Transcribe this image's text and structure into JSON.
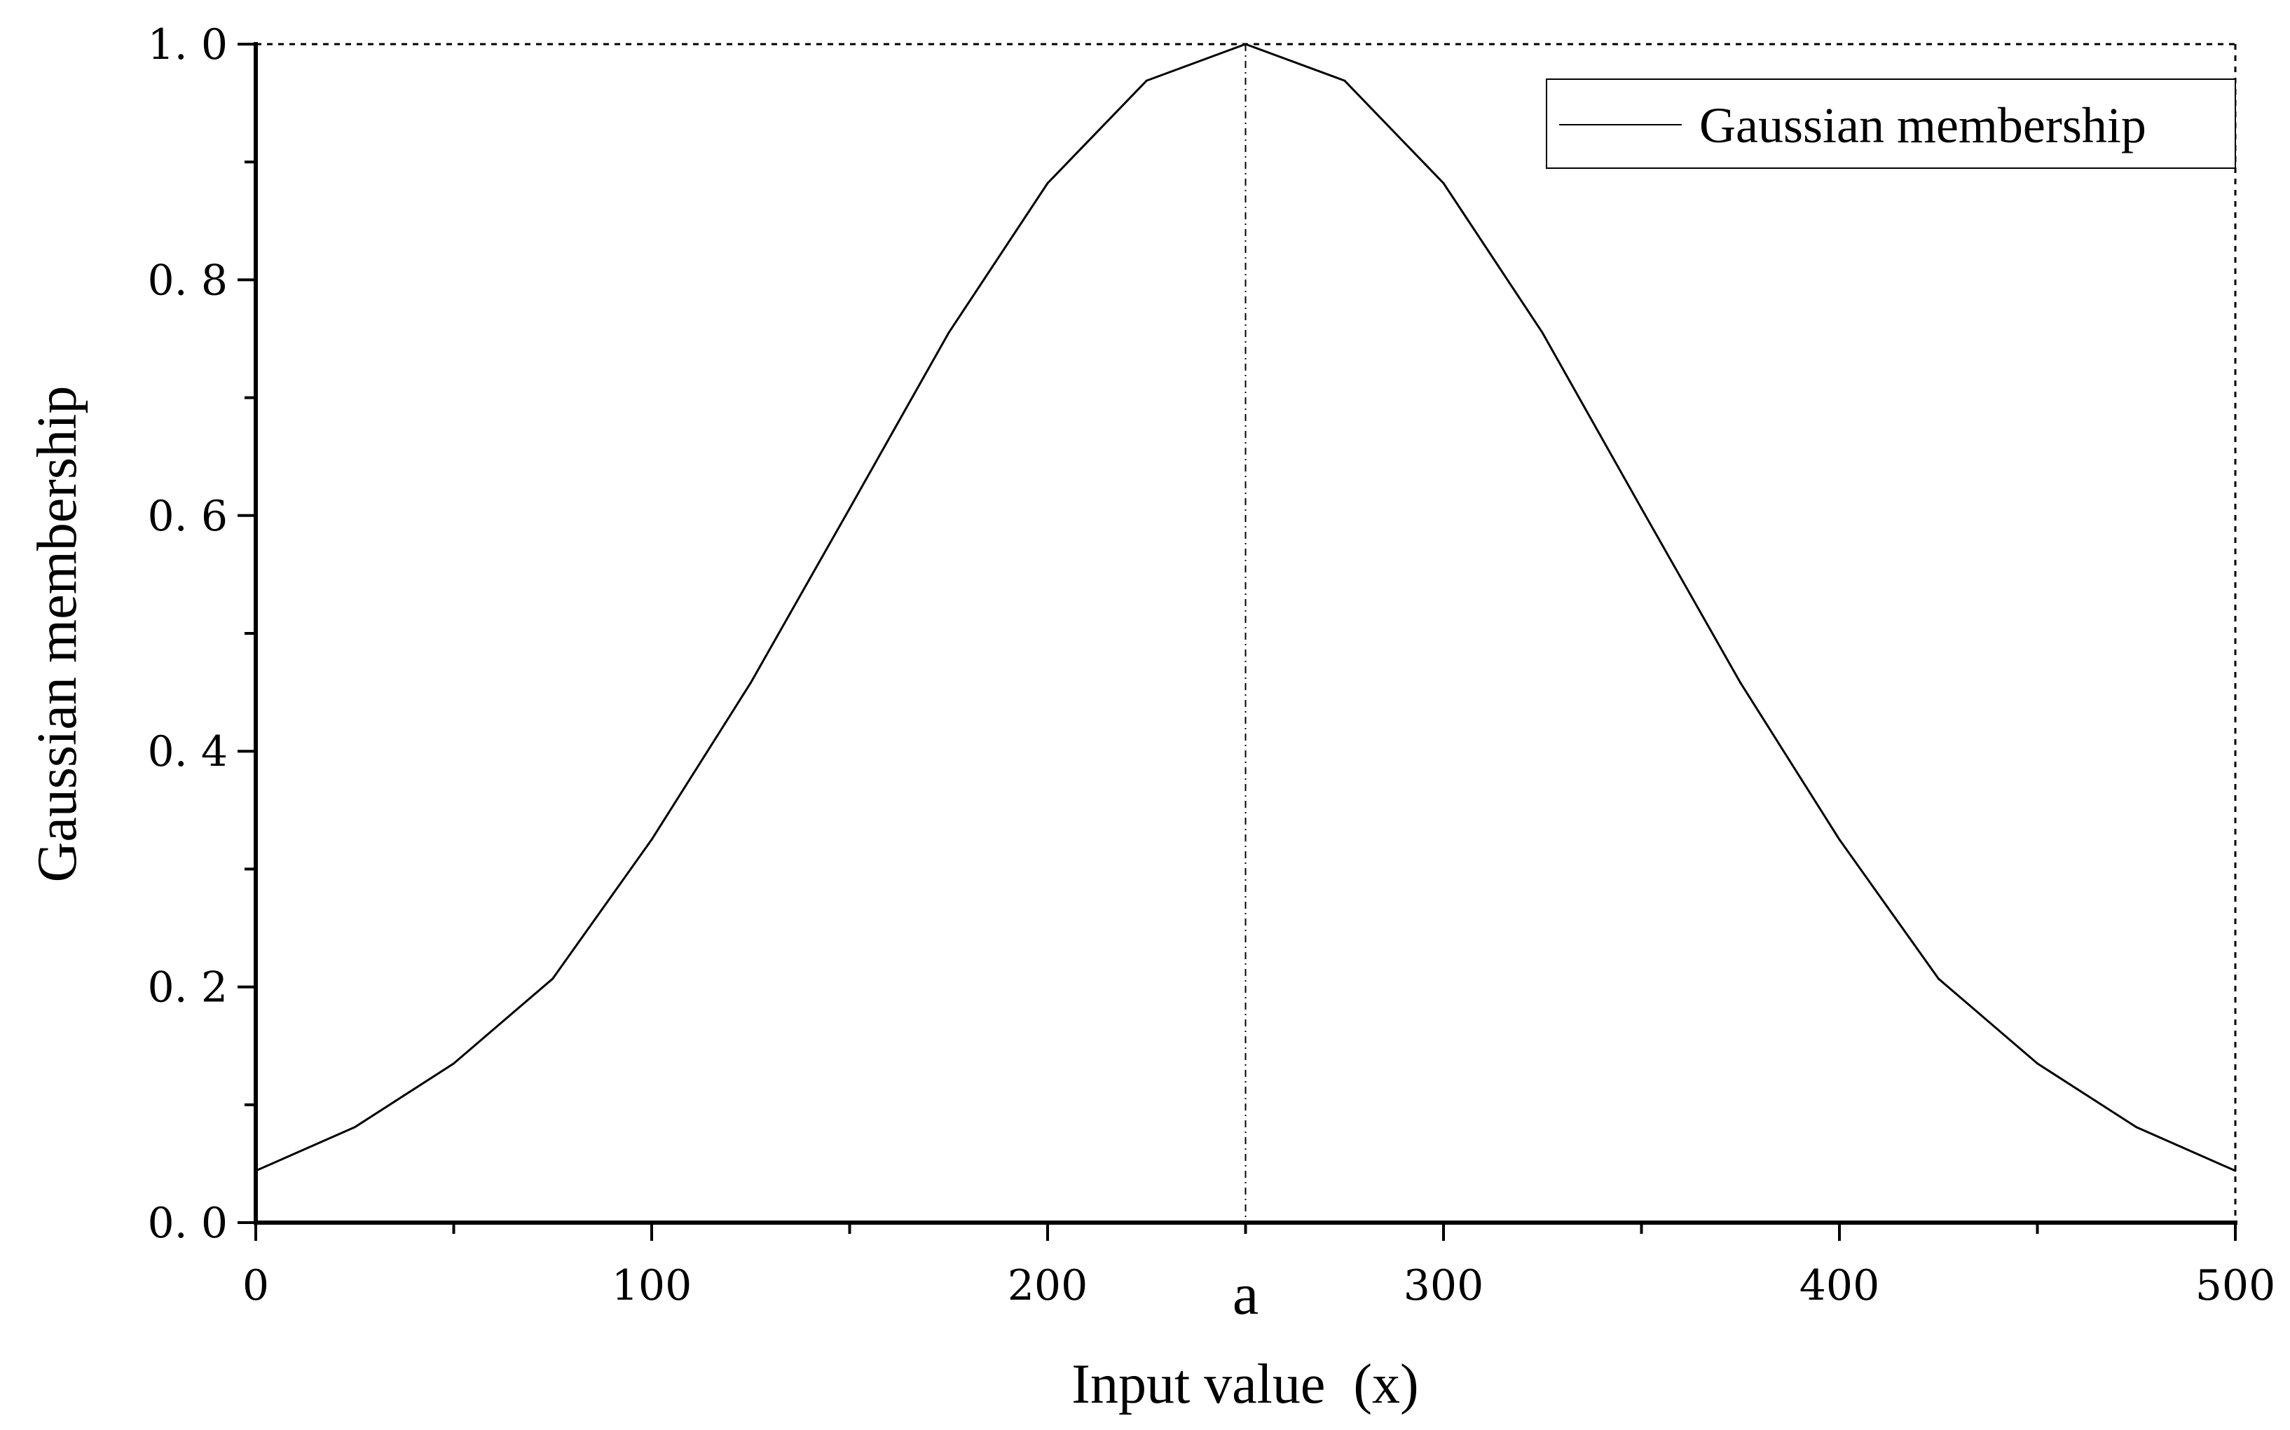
{
  "chart_data": {
    "type": "line",
    "xlabel": "Input value  (x)",
    "ylabel": "Gaussian membership",
    "xlim": [
      0,
      500
    ],
    "ylim": [
      0,
      1.0
    ],
    "x_ticks": [
      "0",
      "100",
      "200",
      "300",
      "400",
      "500"
    ],
    "y_ticks": [
      "0. 0",
      "0. 2",
      "0. 4",
      "0. 6",
      "0. 8",
      "1. 0"
    ],
    "legend_position": "top-right",
    "grid": false,
    "marker": {
      "label": "a",
      "x": 250
    },
    "series": [
      {
        "name": "Gaussian membership",
        "color": "#000000",
        "x": [
          0,
          25,
          50,
          75,
          100,
          125,
          150,
          175,
          200,
          225,
          250,
          275,
          300,
          325,
          350,
          375,
          400,
          425,
          450,
          475,
          500
        ],
        "y": [
          0.044,
          0.081,
          0.135,
          0.207,
          0.325,
          0.458,
          0.606,
          0.755,
          0.882,
          0.969,
          1.0,
          0.969,
          0.882,
          0.755,
          0.606,
          0.458,
          0.325,
          0.207,
          0.135,
          0.081,
          0.044
        ]
      }
    ]
  }
}
